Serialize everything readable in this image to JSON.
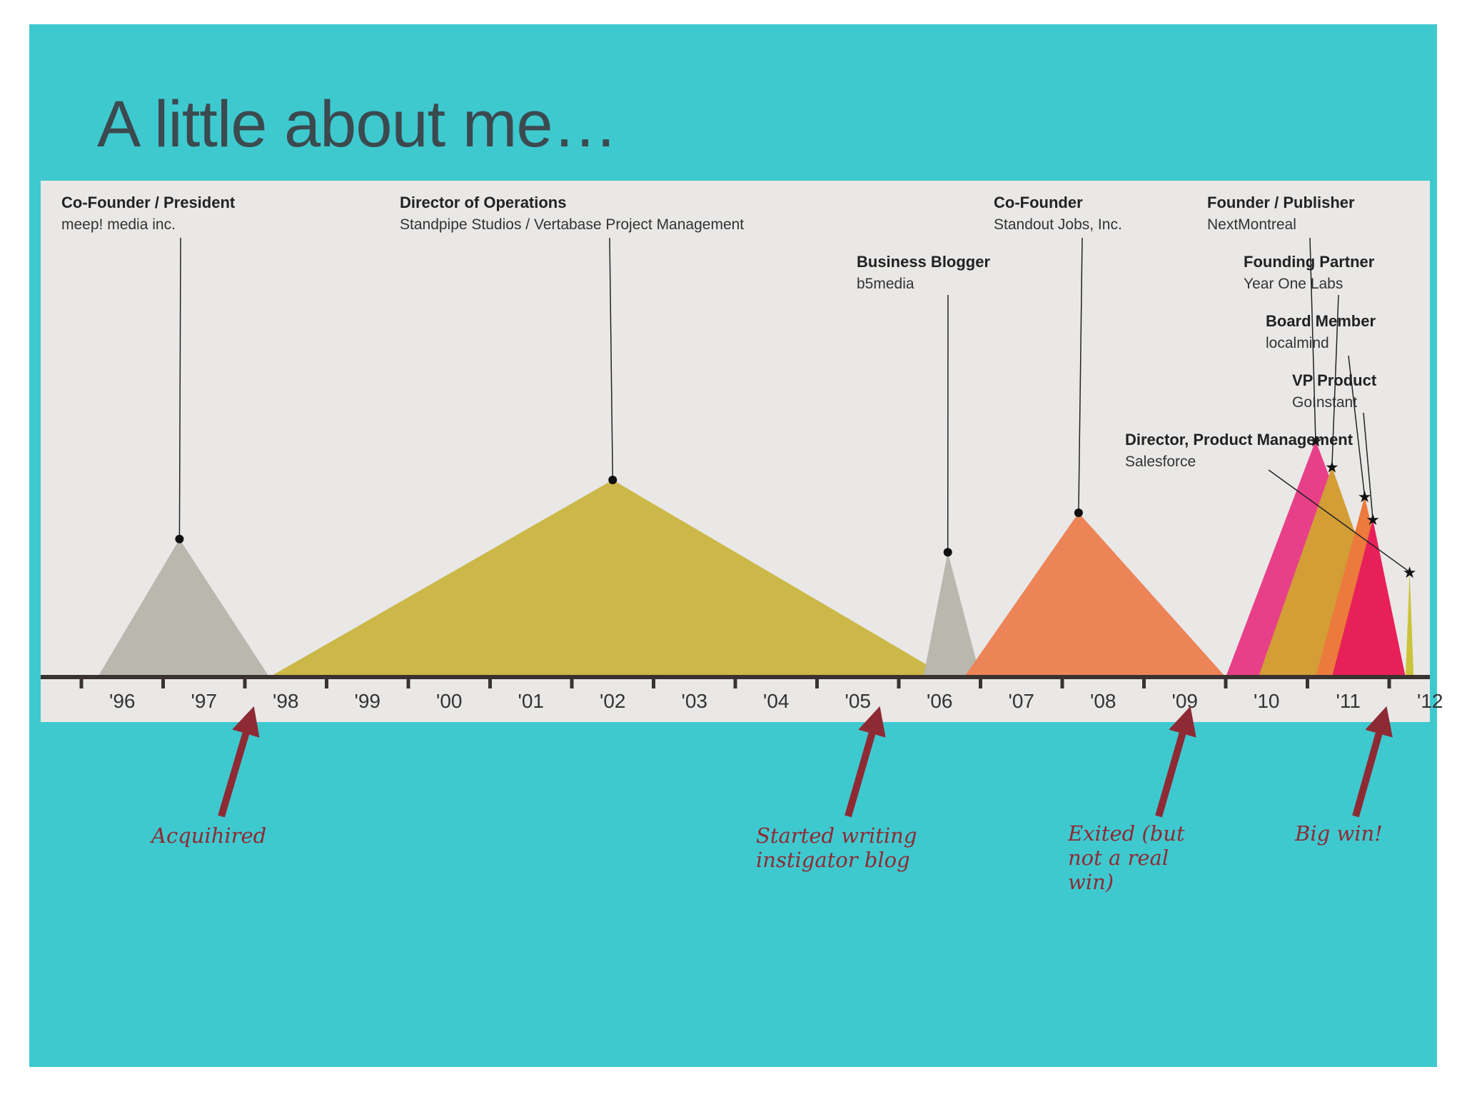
{
  "slide": {
    "title": "A little about me…",
    "background": "#3ec9cf"
  },
  "chart_data": {
    "type": "area",
    "x_axis_ticks": [
      "'96",
      "'97",
      "'98",
      "'99",
      "'00",
      "'01",
      "'02",
      "'03",
      "'04",
      "'05",
      "'06",
      "'07",
      "'08",
      "'09",
      "'10",
      "'11",
      "'12"
    ],
    "roles": [
      {
        "title": "Co-Founder / President",
        "company": "meep! media inc.",
        "start": 1996.2,
        "peak": 1997.2,
        "end": 1998.3,
        "height": 0.42,
        "color": "#b9b8ae"
      },
      {
        "title": "Director of Operations",
        "company": "Standpipe Studios / Vertabase Project Management",
        "start": 1998.3,
        "peak": 2002.5,
        "end": 2006.6,
        "height": 0.6,
        "color": "#cbb848"
      },
      {
        "title": "Business Blogger",
        "company": "b5media",
        "start": 2006.3,
        "peak": 2006.6,
        "end": 2007.0,
        "height": 0.38,
        "color": "#b9b8ae"
      },
      {
        "title": "Co-Founder",
        "company": "Standout Jobs, Inc.",
        "start": 2006.8,
        "peak": 2008.2,
        "end": 2010.0,
        "height": 0.5,
        "color": "#ec8458"
      },
      {
        "title": "Founder / Publisher",
        "company": "NextMontreal",
        "start": 2010.0,
        "peak": 2011.1,
        "end": 2012.2,
        "height": 0.72,
        "color": "#e84088"
      },
      {
        "title": "Founding Partner",
        "company": "Year One Labs",
        "start": 2010.4,
        "peak": 2011.3,
        "end": 2012.2,
        "height": 0.64,
        "color": "#d39e36"
      },
      {
        "title": "Board Member",
        "company": "localmind",
        "start": 2011.1,
        "peak": 2011.7,
        "end": 2012.2,
        "height": 0.55,
        "color": "#ec7a3c"
      },
      {
        "title": "VP Product",
        "company": "GoInstant",
        "start": 2011.3,
        "peak": 2011.8,
        "end": 2012.2,
        "height": 0.48,
        "color": "#e8205a"
      },
      {
        "title": "Director, Product Management",
        "company": "Salesforce",
        "start": 2012.2,
        "peak": 2012.25,
        "end": 2012.3,
        "height": 0.32,
        "color": "#cbc33a"
      }
    ]
  },
  "annotations": [
    {
      "text": "Acquihired"
    },
    {
      "text": "Started writing instigator blog"
    },
    {
      "text": "Exited (but not a real win)"
    },
    {
      "text": "Big win!"
    }
  ]
}
